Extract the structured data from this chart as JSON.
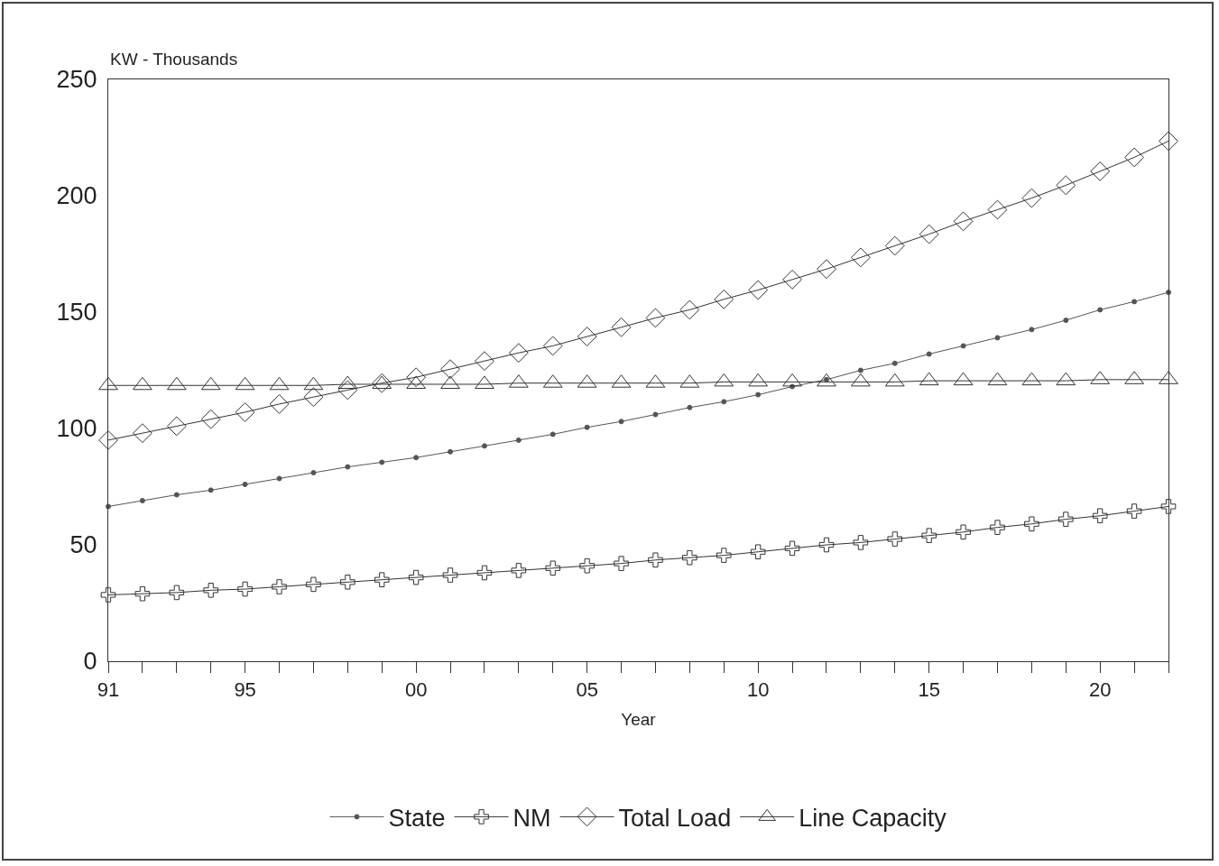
{
  "chart_data": {
    "type": "line",
    "xlabel": "Year",
    "ylabel": "KW - Thousands",
    "x": [
      1991,
      1992,
      1993,
      1994,
      1995,
      1996,
      1997,
      1998,
      1999,
      2000,
      2001,
      2002,
      2003,
      2004,
      2005,
      2006,
      2007,
      2008,
      2009,
      2010,
      2011,
      2012,
      2013,
      2014,
      2015,
      2016,
      2017,
      2018,
      2019,
      2020,
      2021,
      2022
    ],
    "series": [
      {
        "name": "State",
        "color": "#555555",
        "marker": "circle",
        "values": [
          66.5,
          69,
          71.5,
          73.5,
          76,
          78.5,
          81,
          83.5,
          85.5,
          87.5,
          90,
          92.5,
          95,
          97.5,
          100.5,
          103,
          106,
          109,
          111.5,
          114.5,
          118,
          121,
          125,
          128,
          132,
          135.5,
          139,
          142.5,
          146.5,
          151,
          154.5,
          158.5
        ]
      },
      {
        "name": "NM",
        "color": "#333333",
        "marker": "cross",
        "values": [
          28.5,
          29,
          29.5,
          30.5,
          31,
          32,
          33,
          34,
          35,
          36,
          37,
          38,
          39,
          40,
          41,
          42,
          43.5,
          44.5,
          45.5,
          47,
          48.5,
          50,
          51,
          52.5,
          54,
          55.5,
          57.5,
          59,
          61,
          62.5,
          64.5,
          66.5
        ]
      },
      {
        "name": "Total Load",
        "color": "#333333",
        "marker": "diamond",
        "values": [
          95,
          98,
          101,
          104,
          107,
          110.5,
          113.5,
          116.5,
          119.5,
          122,
          125.5,
          129,
          132.5,
          135.5,
          139.5,
          143.5,
          147.5,
          151,
          155.5,
          159.5,
          164,
          168.5,
          173.5,
          178.5,
          183.5,
          189,
          194,
          199,
          204.5,
          210.5,
          216.5,
          223.5
        ]
      },
      {
        "name": "Line Capacity",
        "color": "#333333",
        "marker": "triangle",
        "values": [
          118.5,
          118.5,
          118.5,
          118.5,
          118.5,
          118.5,
          118.5,
          119,
          119,
          119,
          119,
          119,
          119.5,
          119.5,
          119.5,
          119.5,
          119.5,
          119.5,
          120,
          120,
          120,
          120,
          120,
          120,
          120.5,
          120.5,
          120.5,
          120.5,
          120.5,
          121,
          121,
          121
        ]
      }
    ],
    "xlim": [
      1991,
      2022
    ],
    "xticks": [
      {
        "value": 1991,
        "label": "91"
      },
      {
        "value": 1992,
        "label": null
      },
      {
        "value": 1993,
        "label": null
      },
      {
        "value": 1994,
        "label": null
      },
      {
        "value": 1995,
        "label": "95"
      },
      {
        "value": 1996,
        "label": null
      },
      {
        "value": 1997,
        "label": null
      },
      {
        "value": 1998,
        "label": null
      },
      {
        "value": 1999,
        "label": null
      },
      {
        "value": 2000,
        "label": "00"
      },
      {
        "value": 2001,
        "label": null
      },
      {
        "value": 2002,
        "label": null
      },
      {
        "value": 2003,
        "label": null
      },
      {
        "value": 2004,
        "label": null
      },
      {
        "value": 2005,
        "label": "05"
      },
      {
        "value": 2006,
        "label": null
      },
      {
        "value": 2007,
        "label": null
      },
      {
        "value": 2008,
        "label": null
      },
      {
        "value": 2009,
        "label": null
      },
      {
        "value": 2010,
        "label": "10"
      },
      {
        "value": 2011,
        "label": null
      },
      {
        "value": 2012,
        "label": null
      },
      {
        "value": 2013,
        "label": null
      },
      {
        "value": 2014,
        "label": null
      },
      {
        "value": 2015,
        "label": "15"
      },
      {
        "value": 2016,
        "label": null
      },
      {
        "value": 2017,
        "label": null
      },
      {
        "value": 2018,
        "label": null
      },
      {
        "value": 2019,
        "label": null
      },
      {
        "value": 2020,
        "label": "20"
      },
      {
        "value": 2021,
        "label": null
      },
      {
        "value": 2022,
        "label": null
      }
    ],
    "ylim": [
      0,
      250
    ],
    "yticks": [
      0,
      50,
      100,
      150,
      200,
      250
    ],
    "grid": false,
    "legend": "bottom",
    "line_style": "solid"
  }
}
